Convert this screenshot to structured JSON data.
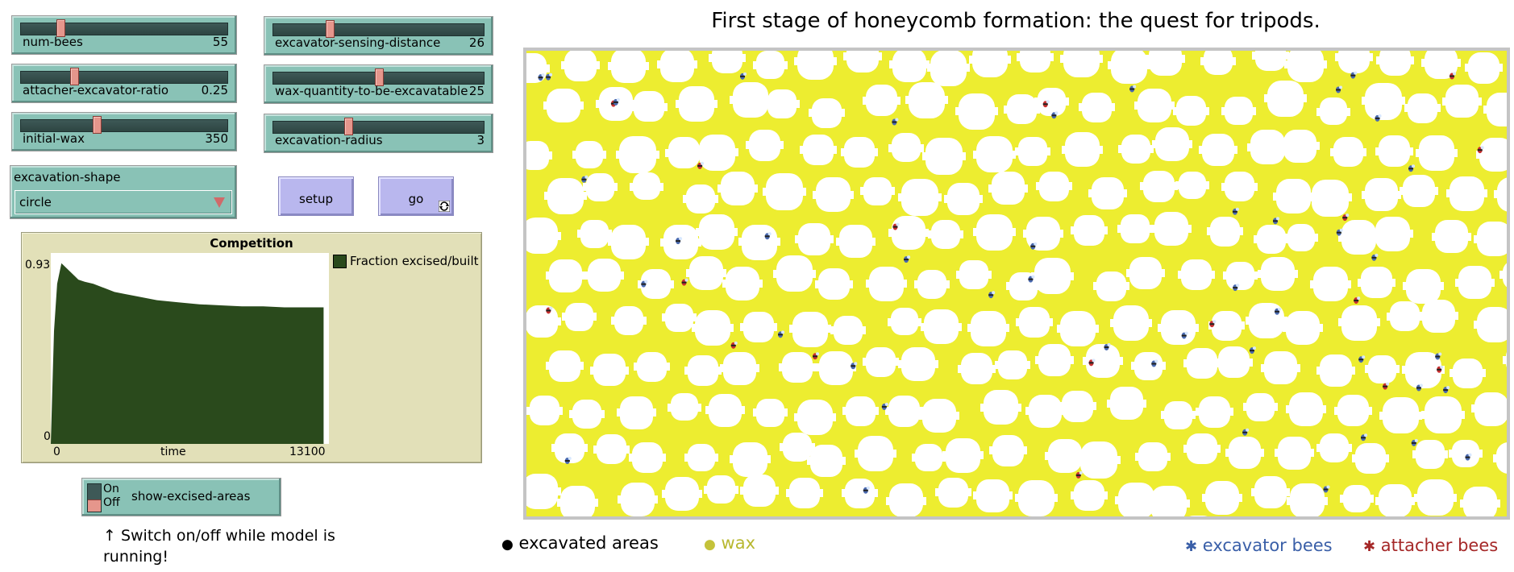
{
  "sliders": {
    "num_bees": {
      "label": "num-bees",
      "value": "55",
      "fraction": 0.18
    },
    "attacher_excavator_ratio": {
      "label": "attacher-excavator-ratio",
      "value": "0.25",
      "fraction": 0.25
    },
    "initial_wax": {
      "label": "initial-wax",
      "value": "350",
      "fraction": 0.36
    },
    "excavator_sensing_distance": {
      "label": "excavator-sensing-distance",
      "value": "26",
      "fraction": 0.26
    },
    "wax_quantity_to_be_excavatable": {
      "label": "wax-quantity-to-be-excavatable",
      "value": "25",
      "fraction": 0.5
    },
    "excavation_radius": {
      "label": "excavation-radius",
      "value": "3",
      "fraction": 0.35
    }
  },
  "chooser": {
    "label": "excavation-shape",
    "value": "circle"
  },
  "buttons": {
    "setup": "setup",
    "go": "go"
  },
  "plot": {
    "title": "Competition",
    "legend": "Fraction excised/built",
    "y_max": "0.93",
    "y_min": "0",
    "x_min": "0",
    "x_max": "13100",
    "x_label": "time"
  },
  "switch": {
    "on": "On",
    "off": "Off",
    "label": "show-excised-areas"
  },
  "note": {
    "line1": "↑ Switch on/off while model is",
    "line2": "running!"
  },
  "world": {
    "title": "First stage of honeycomb formation: the quest for tripods."
  },
  "legend": {
    "excavated": "excavated areas",
    "wax": "wax",
    "excavator": "excavator bees",
    "attacher": "attacher bees"
  },
  "colors": {
    "wax": "#eded30",
    "excavated": "#ffffff",
    "excavator": "#3a5fa8",
    "attacher": "#b22a2a",
    "plot_fill": "#2a4a1c"
  },
  "chart_data": {
    "type": "area",
    "title": "Competition",
    "xlabel": "time",
    "ylabel": "",
    "xlim": [
      0,
      13100
    ],
    "ylim": [
      0,
      0.93
    ],
    "series": [
      {
        "name": "Fraction excised/built",
        "x": [
          0,
          150,
          300,
          500,
          700,
          900,
          1100,
          1300,
          1600,
          2000,
          2500,
          3000,
          3500,
          4000,
          5000,
          6000,
          7000,
          8000,
          9000,
          10000,
          11000,
          12000,
          12850
        ],
        "values": [
          0.0,
          0.55,
          0.78,
          0.88,
          0.86,
          0.84,
          0.82,
          0.8,
          0.79,
          0.78,
          0.76,
          0.74,
          0.73,
          0.72,
          0.7,
          0.69,
          0.68,
          0.675,
          0.67,
          0.67,
          0.665,
          0.665,
          0.665
        ]
      }
    ]
  }
}
